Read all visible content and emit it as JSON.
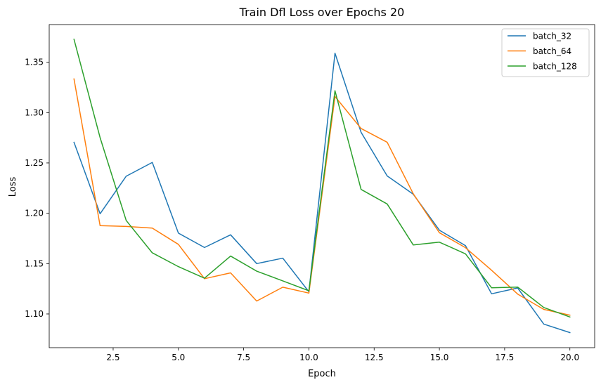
{
  "chart_data": {
    "type": "line",
    "title": "Train Dfl Loss over Epochs 20",
    "xlabel": "Epoch",
    "ylabel": "Loss",
    "xlim": [
      0.05,
      20.95
    ],
    "ylim": [
      1.0665,
      1.3874
    ],
    "xticks": [
      2.5,
      5.0,
      7.5,
      10.0,
      12.5,
      15.0,
      17.5,
      20.0
    ],
    "xtick_labels": [
      "2.5",
      "5.0",
      "7.5",
      "10.0",
      "12.5",
      "15.0",
      "17.5",
      "20.0"
    ],
    "yticks": [
      1.1,
      1.15,
      1.2,
      1.25,
      1.3,
      1.35
    ],
    "ytick_labels": [
      "1.10",
      "1.15",
      "1.20",
      "1.25",
      "1.30",
      "1.35"
    ],
    "grid": false,
    "legend_position": "top-right",
    "x": [
      1,
      2,
      3,
      4,
      5,
      6,
      7,
      8,
      9,
      10,
      11,
      12,
      13,
      14,
      15,
      16,
      17,
      18,
      19,
      20
    ],
    "series": [
      {
        "name": "batch_32",
        "color": "#1f77b4",
        "values": [
          1.2705,
          1.1995,
          1.2368,
          1.2505,
          1.1803,
          1.166,
          1.1786,
          1.15,
          1.1554,
          1.122,
          1.359,
          1.2804,
          1.2371,
          1.2189,
          1.1832,
          1.1678,
          1.12,
          1.1258,
          1.0899,
          1.0815
        ]
      },
      {
        "name": "batch_64",
        "color": "#ff7f0e",
        "values": [
          1.3334,
          1.1877,
          1.1869,
          1.1853,
          1.1691,
          1.135,
          1.1408,
          1.1128,
          1.1266,
          1.1207,
          1.316,
          1.2842,
          1.2705,
          1.2193,
          1.1807,
          1.1658,
          1.1434,
          1.1197,
          1.1045,
          1.0988
        ]
      },
      {
        "name": "batch_128",
        "color": "#2ca02c",
        "values": [
          1.3728,
          1.2751,
          1.1928,
          1.1607,
          1.147,
          1.1355,
          1.1575,
          1.1425,
          1.1328,
          1.123,
          1.3217,
          1.2237,
          1.2092,
          1.1685,
          1.1713,
          1.1597,
          1.126,
          1.1267,
          1.1064,
          1.097
        ]
      }
    ]
  }
}
